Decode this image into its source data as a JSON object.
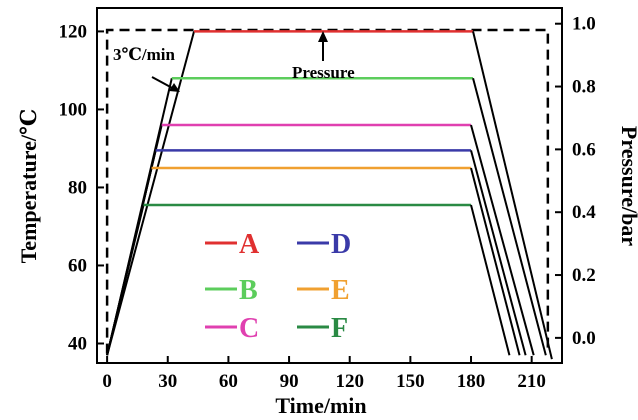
{
  "chart_data": {
    "type": "line",
    "xlabel": "Time/min",
    "ylabel_left": "Temperature/℃",
    "ylabel_right": "Pressure/bar",
    "xlim": [
      -5,
      225
    ],
    "ylim_left": [
      35,
      126
    ],
    "ylim_right": [
      -0.08,
      1.05
    ],
    "xticks": [
      0,
      30,
      60,
      90,
      120,
      150,
      180,
      210
    ],
    "yticks_left": [
      40,
      60,
      80,
      100,
      120
    ],
    "yticks_right": [
      0.0,
      0.2,
      0.4,
      0.6,
      0.8,
      1.0
    ],
    "ytick_labels_right": [
      "0.0",
      "0.2",
      "0.4",
      "0.6",
      "0.8",
      "1.0"
    ],
    "grid": false,
    "legend_position": "lower-left",
    "series": [
      {
        "name": "A",
        "color": "#e03030",
        "x": [
          0,
          43,
          181,
          220
        ],
        "y": [
          37,
          120,
          120,
          36
        ]
      },
      {
        "name": "B",
        "color": "#5ccd5c",
        "x": [
          0,
          32,
          181,
          217
        ],
        "y": [
          37,
          108,
          108,
          37
        ]
      },
      {
        "name": "C",
        "color": "#e040b0",
        "x": [
          0,
          27,
          180,
          211
        ],
        "y": [
          37,
          96,
          96,
          37
        ]
      },
      {
        "name": "D",
        "color": "#3a3aa8",
        "x": [
          0,
          24,
          180,
          207
        ],
        "y": [
          37,
          89.5,
          89.5,
          37
        ]
      },
      {
        "name": "E",
        "color": "#f0a030",
        "x": [
          0,
          22,
          180,
          204
        ],
        "y": [
          37,
          85,
          85,
          37
        ]
      },
      {
        "name": "F",
        "color": "#2a8a44",
        "x": [
          0,
          18,
          180,
          199
        ],
        "y": [
          37,
          75.5,
          75.5,
          37
        ]
      }
    ],
    "pressure_series": {
      "x": [
        0,
        0,
        218,
        218
      ],
      "y": [
        -0.05,
        0.98,
        0.98,
        -0.05
      ],
      "color": "#000000",
      "style": "dashed"
    },
    "annotations": [
      {
        "text": "3℃/min"
      },
      {
        "text": "Pressure"
      }
    ]
  }
}
